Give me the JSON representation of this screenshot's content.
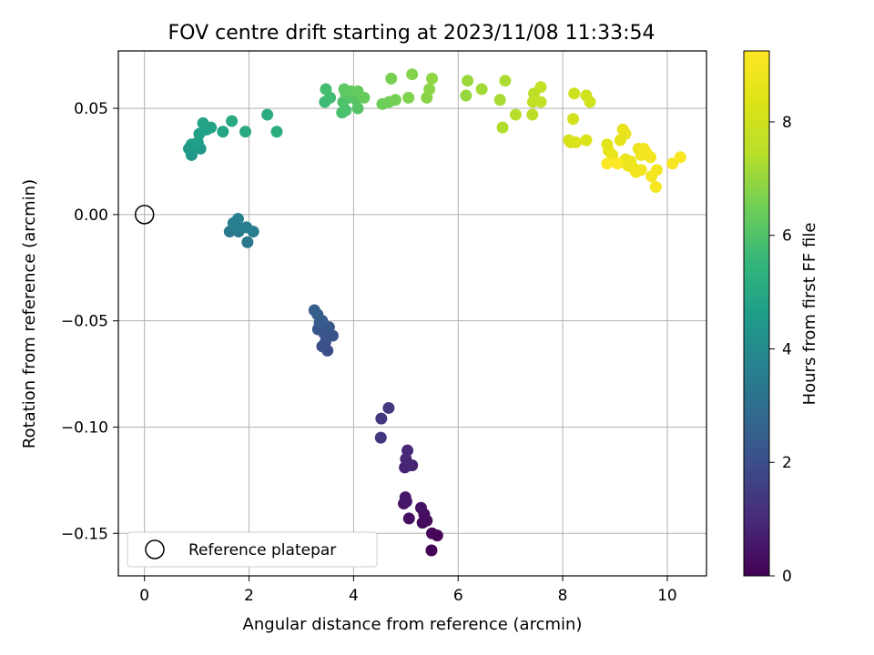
{
  "chart_data": {
    "type": "scatter",
    "title": "FOV centre drift starting at 2023/11/08 11:33:54",
    "xlabel": "Angular distance from reference (arcmin)",
    "ylabel": "Rotation from reference (arcmin)",
    "xlim": [
      -0.5,
      10.75
    ],
    "ylim": [
      -0.17,
      0.077
    ],
    "xticks": [
      0,
      2,
      4,
      6,
      8,
      10
    ],
    "xtick_labels": [
      "0",
      "2",
      "4",
      "6",
      "8",
      "10"
    ],
    "yticks": [
      -0.15,
      -0.1,
      -0.05,
      0.0,
      0.05
    ],
    "ytick_labels": [
      "−0.15",
      "−0.10",
      "−0.05",
      "0.00",
      "0.05"
    ],
    "grid": true,
    "legend": {
      "position": "lower-left",
      "entries": [
        "Reference platepar"
      ]
    },
    "reference_point": {
      "x": 0,
      "y": 0
    },
    "colorbar": {
      "label": "Hours from first FF file",
      "colormap": "viridis",
      "min": 0,
      "max": 9.25,
      "ticks": [
        0,
        2,
        4,
        6,
        8
      ],
      "tick_labels": [
        "0",
        "2",
        "4",
        "6",
        "8"
      ]
    },
    "points": [
      {
        "x": 5.49,
        "y": -0.158,
        "t": 0.05
      },
      {
        "x": 5.6,
        "y": -0.151,
        "t": 0.1
      },
      {
        "x": 5.5,
        "y": -0.15,
        "t": 0.15
      },
      {
        "x": 5.32,
        "y": -0.145,
        "t": 0.2
      },
      {
        "x": 5.4,
        "y": -0.144,
        "t": 0.25
      },
      {
        "x": 5.35,
        "y": -0.141,
        "t": 0.3
      },
      {
        "x": 5.06,
        "y": -0.143,
        "t": 0.35
      },
      {
        "x": 5.29,
        "y": -0.138,
        "t": 0.4
      },
      {
        "x": 4.96,
        "y": -0.136,
        "t": 0.45
      },
      {
        "x": 5.01,
        "y": -0.135,
        "t": 0.5
      },
      {
        "x": 4.99,
        "y": -0.133,
        "t": 0.55
      },
      {
        "x": 5.12,
        "y": -0.118,
        "t": 0.75
      },
      {
        "x": 4.98,
        "y": -0.119,
        "t": 0.8
      },
      {
        "x": 5.06,
        "y": -0.118,
        "t": 0.85
      },
      {
        "x": 5.0,
        "y": -0.115,
        "t": 0.9
      },
      {
        "x": 5.03,
        "y": -0.111,
        "t": 0.95
      },
      {
        "x": 4.52,
        "y": -0.105,
        "t": 1.3
      },
      {
        "x": 4.53,
        "y": -0.096,
        "t": 1.35
      },
      {
        "x": 4.67,
        "y": -0.091,
        "t": 1.4
      },
      {
        "x": 3.5,
        "y": -0.064,
        "t": 2.0
      },
      {
        "x": 3.4,
        "y": -0.062,
        "t": 2.05
      },
      {
        "x": 3.46,
        "y": -0.06,
        "t": 2.1
      },
      {
        "x": 3.6,
        "y": -0.057,
        "t": 2.15
      },
      {
        "x": 3.44,
        "y": -0.056,
        "t": 2.2
      },
      {
        "x": 3.32,
        "y": -0.054,
        "t": 2.25
      },
      {
        "x": 3.53,
        "y": -0.053,
        "t": 2.3
      },
      {
        "x": 3.35,
        "y": -0.051,
        "t": 2.35
      },
      {
        "x": 3.4,
        "y": -0.05,
        "t": 2.4
      },
      {
        "x": 3.31,
        "y": -0.047,
        "t": 2.45
      },
      {
        "x": 3.25,
        "y": -0.045,
        "t": 2.5
      },
      {
        "x": 1.97,
        "y": -0.013,
        "t": 3.3
      },
      {
        "x": 1.63,
        "y": -0.008,
        "t": 3.35
      },
      {
        "x": 1.8,
        "y": -0.008,
        "t": 3.4
      },
      {
        "x": 2.08,
        "y": -0.008,
        "t": 3.45
      },
      {
        "x": 1.77,
        "y": -0.006,
        "t": 3.5
      },
      {
        "x": 1.95,
        "y": -0.006,
        "t": 3.55
      },
      {
        "x": 1.7,
        "y": -0.004,
        "t": 3.6
      },
      {
        "x": 1.79,
        "y": -0.002,
        "t": 3.65
      },
      {
        "x": 0.9,
        "y": 0.028,
        "t": 4.4
      },
      {
        "x": 0.85,
        "y": 0.031,
        "t": 4.45
      },
      {
        "x": 1.07,
        "y": 0.031,
        "t": 4.5
      },
      {
        "x": 0.9,
        "y": 0.033,
        "t": 4.55
      },
      {
        "x": 0.97,
        "y": 0.032,
        "t": 4.6
      },
      {
        "x": 1.02,
        "y": 0.034,
        "t": 4.65
      },
      {
        "x": 1.05,
        "y": 0.038,
        "t": 4.7
      },
      {
        "x": 1.19,
        "y": 0.04,
        "t": 4.75
      },
      {
        "x": 1.27,
        "y": 0.041,
        "t": 4.8
      },
      {
        "x": 1.12,
        "y": 0.043,
        "t": 4.85
      },
      {
        "x": 1.5,
        "y": 0.039,
        "t": 4.9
      },
      {
        "x": 1.67,
        "y": 0.044,
        "t": 5.0
      },
      {
        "x": 1.93,
        "y": 0.039,
        "t": 5.05
      },
      {
        "x": 2.35,
        "y": 0.047,
        "t": 5.15
      },
      {
        "x": 2.53,
        "y": 0.039,
        "t": 5.2
      },
      {
        "x": 3.45,
        "y": 0.053,
        "t": 5.7
      },
      {
        "x": 3.55,
        "y": 0.055,
        "t": 5.75
      },
      {
        "x": 3.47,
        "y": 0.059,
        "t": 5.8
      },
      {
        "x": 3.78,
        "y": 0.048,
        "t": 5.85
      },
      {
        "x": 3.85,
        "y": 0.049,
        "t": 5.9
      },
      {
        "x": 3.8,
        "y": 0.053,
        "t": 5.95
      },
      {
        "x": 3.9,
        "y": 0.055,
        "t": 6.0
      },
      {
        "x": 4.08,
        "y": 0.05,
        "t": 6.05
      },
      {
        "x": 4.05,
        "y": 0.054,
        "t": 6.1
      },
      {
        "x": 3.85,
        "y": 0.057,
        "t": 6.15
      },
      {
        "x": 3.82,
        "y": 0.059,
        "t": 6.2
      },
      {
        "x": 3.95,
        "y": 0.058,
        "t": 6.25
      },
      {
        "x": 4.08,
        "y": 0.058,
        "t": 6.3
      },
      {
        "x": 4.2,
        "y": 0.055,
        "t": 6.35
      },
      {
        "x": 4.55,
        "y": 0.052,
        "t": 6.45
      },
      {
        "x": 4.68,
        "y": 0.053,
        "t": 6.5
      },
      {
        "x": 4.8,
        "y": 0.054,
        "t": 6.55
      },
      {
        "x": 4.72,
        "y": 0.064,
        "t": 6.6
      },
      {
        "x": 5.05,
        "y": 0.055,
        "t": 6.7
      },
      {
        "x": 5.12,
        "y": 0.066,
        "t": 6.75
      },
      {
        "x": 5.4,
        "y": 0.055,
        "t": 6.8
      },
      {
        "x": 5.45,
        "y": 0.059,
        "t": 6.85
      },
      {
        "x": 5.5,
        "y": 0.064,
        "t": 6.9
      },
      {
        "x": 6.15,
        "y": 0.056,
        "t": 7.0
      },
      {
        "x": 6.18,
        "y": 0.063,
        "t": 7.05
      },
      {
        "x": 6.45,
        "y": 0.059,
        "t": 7.15
      },
      {
        "x": 6.8,
        "y": 0.054,
        "t": 7.25
      },
      {
        "x": 6.9,
        "y": 0.063,
        "t": 7.3
      },
      {
        "x": 6.85,
        "y": 0.041,
        "t": 7.35
      },
      {
        "x": 7.1,
        "y": 0.047,
        "t": 7.45
      },
      {
        "x": 7.42,
        "y": 0.047,
        "t": 7.55
      },
      {
        "x": 7.45,
        "y": 0.057,
        "t": 7.6
      },
      {
        "x": 7.43,
        "y": 0.053,
        "t": 7.65
      },
      {
        "x": 7.58,
        "y": 0.053,
        "t": 7.7
      },
      {
        "x": 7.58,
        "y": 0.06,
        "t": 7.75
      },
      {
        "x": 8.22,
        "y": 0.057,
        "t": 7.95
      },
      {
        "x": 8.45,
        "y": 0.056,
        "t": 8.0
      },
      {
        "x": 8.52,
        "y": 0.053,
        "t": 8.05
      },
      {
        "x": 8.2,
        "y": 0.045,
        "t": 8.1
      },
      {
        "x": 8.12,
        "y": 0.035,
        "t": 8.15
      },
      {
        "x": 8.15,
        "y": 0.034,
        "t": 8.2
      },
      {
        "x": 8.25,
        "y": 0.034,
        "t": 8.25
      },
      {
        "x": 8.45,
        "y": 0.035,
        "t": 8.3
      },
      {
        "x": 8.85,
        "y": 0.033,
        "t": 8.45
      },
      {
        "x": 8.88,
        "y": 0.03,
        "t": 8.5
      },
      {
        "x": 9.1,
        "y": 0.035,
        "t": 8.55
      },
      {
        "x": 9.15,
        "y": 0.04,
        "t": 8.6
      },
      {
        "x": 9.2,
        "y": 0.038,
        "t": 8.65
      },
      {
        "x": 8.95,
        "y": 0.028,
        "t": 8.7
      },
      {
        "x": 9.2,
        "y": 0.026,
        "t": 8.72
      },
      {
        "x": 9.3,
        "y": 0.025,
        "t": 8.75
      },
      {
        "x": 9.25,
        "y": 0.023,
        "t": 8.77
      },
      {
        "x": 9.35,
        "y": 0.022,
        "t": 8.8
      },
      {
        "x": 9.45,
        "y": 0.031,
        "t": 8.82
      },
      {
        "x": 9.55,
        "y": 0.031,
        "t": 8.85
      },
      {
        "x": 9.5,
        "y": 0.028,
        "t": 8.87
      },
      {
        "x": 9.6,
        "y": 0.029,
        "t": 8.9
      },
      {
        "x": 9.4,
        "y": 0.02,
        "t": 8.92
      },
      {
        "x": 9.5,
        "y": 0.021,
        "t": 8.95
      },
      {
        "x": 9.68,
        "y": 0.027,
        "t": 8.97
      },
      {
        "x": 9.7,
        "y": 0.018,
        "t": 9.0
      },
      {
        "x": 9.8,
        "y": 0.021,
        "t": 9.02
      },
      {
        "x": 9.78,
        "y": 0.013,
        "t": 9.05
      },
      {
        "x": 10.1,
        "y": 0.024,
        "t": 9.1
      },
      {
        "x": 10.25,
        "y": 0.027,
        "t": 9.15
      },
      {
        "x": 8.85,
        "y": 0.024,
        "t": 9.18
      },
      {
        "x": 9.05,
        "y": 0.024,
        "t": 9.2
      }
    ]
  }
}
